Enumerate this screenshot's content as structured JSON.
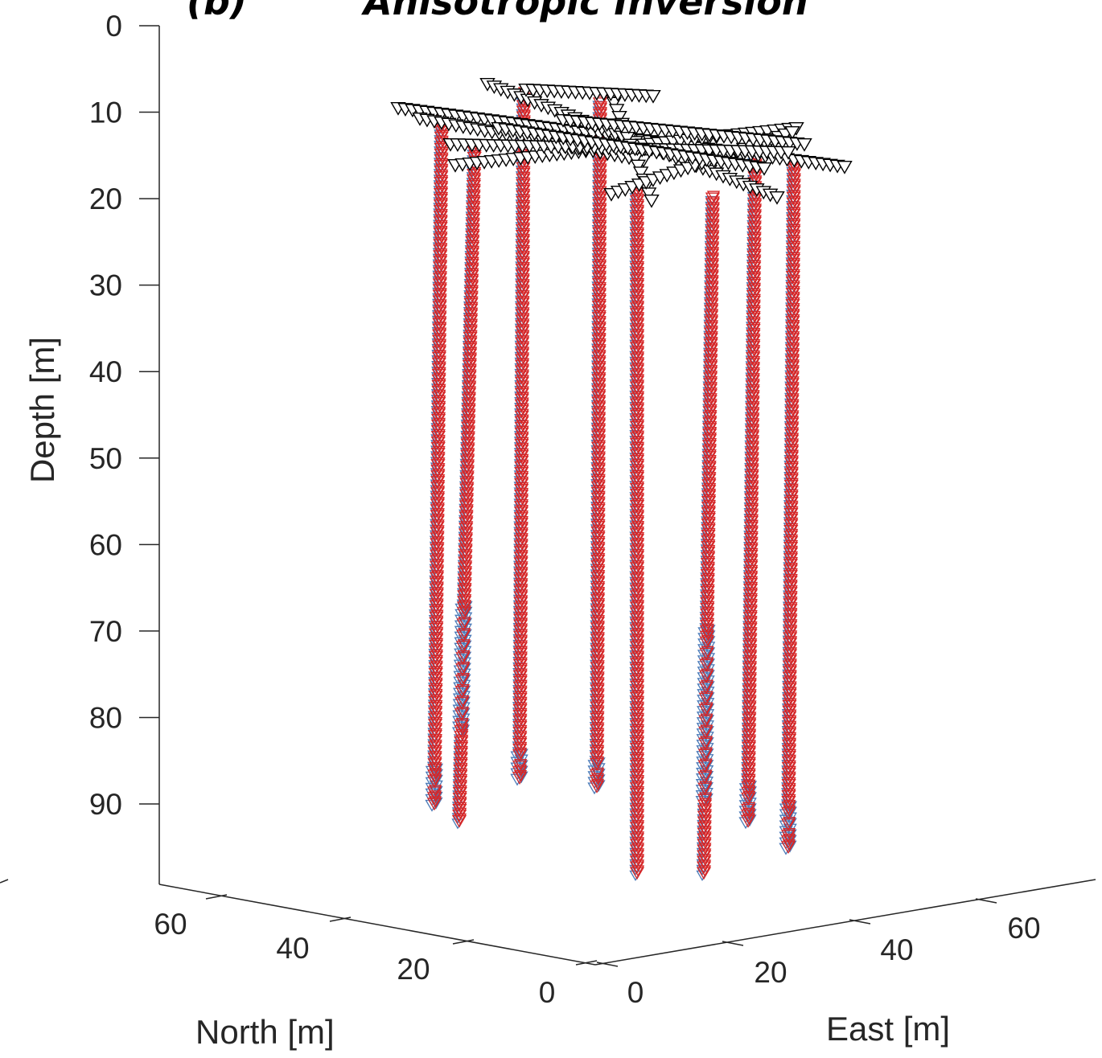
{
  "chart_data": {
    "type": "scatter3d",
    "panel_label": "(b)",
    "title": "Anisotropic Inversion",
    "zlabel": "Depth [m]",
    "xlabel": "North [m]",
    "ylabel": "East [m]",
    "z_ticks": [
      "0",
      "10",
      "20",
      "30",
      "40",
      "50",
      "60",
      "70",
      "80",
      "90"
    ],
    "north_ticks": [
      "60",
      "40",
      "20",
      "0"
    ],
    "east_ticks": [
      "0",
      "20",
      "40",
      "60"
    ],
    "zlim": [
      0,
      100
    ],
    "grid": false,
    "colors": {
      "axis": "#262626",
      "inverted": "#d62728",
      "true": "#4a7ab8",
      "surface": "#000000"
    },
    "boreholes": [
      {
        "id": 1,
        "top_depth": 11,
        "bottom_depth": 90,
        "blue_depth_range": [
          86,
          90
        ]
      },
      {
        "id": 2,
        "top_depth": 14,
        "bottom_depth": 92,
        "blue_depth_range": [
          67,
          82
        ]
      },
      {
        "id": 3,
        "top_depth": 8,
        "bottom_depth": 87,
        "blue_depth_range": [
          84,
          87
        ]
      },
      {
        "id": 4,
        "top_depth": 9,
        "bottom_depth": 88,
        "blue_depth_range": [
          85,
          88
        ]
      },
      {
        "id": 5,
        "top_depth": 19,
        "bottom_depth": 98,
        "blue_depth_range": []
      },
      {
        "id": 6,
        "top_depth": 20,
        "bottom_depth": 98,
        "blue_depth_range": [
          70,
          90
        ]
      },
      {
        "id": 7,
        "top_depth": 13,
        "bottom_depth": 92,
        "blue_depth_range": [
          88,
          92
        ]
      },
      {
        "id": 8,
        "top_depth": 16,
        "bottom_depth": 95,
        "blue_depth_range": [
          90,
          95
        ]
      }
    ]
  }
}
